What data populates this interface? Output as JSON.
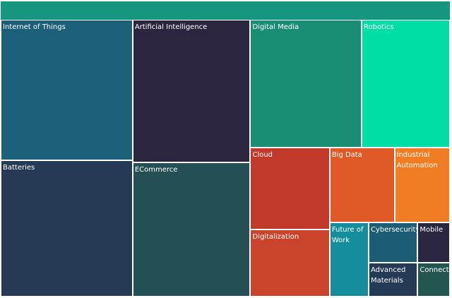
{
  "chart_data": {
    "type": "treemap",
    "header_color": "#16967e",
    "categories": [
      "Internet of Things",
      "Batteries",
      "Artificial Intelligence",
      "ECommerce",
      "Digital Media",
      "Robotics",
      "Cloud",
      "Digitalization",
      "Big Data",
      "Industrial Automation",
      "Future of Work",
      "Cybersecurity",
      "Advanced Materials",
      "Mobile",
      "Connect"
    ],
    "values": [
      371,
      361,
      336,
      317,
      285,
      226,
      130,
      107,
      97,
      83,
      58,
      40,
      33,
      26,
      22
    ],
    "colors": [
      "#1b5f78",
      "#263a55",
      "#2b2540",
      "#234f55",
      "#1a8e74",
      "#00dea6",
      "#c0392b",
      "#c9442a",
      "#e05a28",
      "#f07d23",
      "#168d9c",
      "#1d5d73",
      "#253a55",
      "#2a2540",
      "#235551"
    ]
  }
}
